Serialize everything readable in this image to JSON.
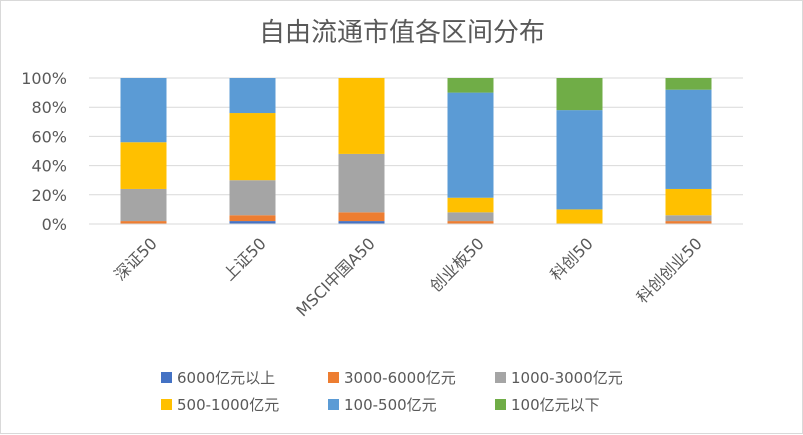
{
  "chart_data": {
    "type": "bar",
    "stacked": true,
    "title": "自由流通市值各区间分布",
    "categories": [
      "深证50",
      "上证50",
      "MSCI中国A50",
      "创业板50",
      "科创50",
      "科创创业50"
    ],
    "y_tick_labels": [
      "0%",
      "20%",
      "40%",
      "60%",
      "80%",
      "100%"
    ],
    "ylim": [
      0,
      100
    ],
    "grid": true,
    "legend_position": "bottom",
    "series": [
      {
        "name": "6000亿元以上",
        "color": "#4472C4",
        "values": [
          0,
          2,
          2,
          0,
          0,
          0
        ]
      },
      {
        "name": "3000-6000亿元",
        "color": "#ED7D31",
        "values": [
          2,
          4,
          6,
          2,
          0,
          2
        ]
      },
      {
        "name": "1000-3000亿元",
        "color": "#A5A5A5",
        "values": [
          22,
          24,
          40,
          6,
          0,
          4
        ]
      },
      {
        "name": "500-1000亿元",
        "color": "#FFC000",
        "values": [
          32,
          46,
          52,
          10,
          10,
          18
        ]
      },
      {
        "name": "100-500亿元",
        "color": "#5B9BD5",
        "values": [
          44,
          24,
          0,
          72,
          68,
          68
        ]
      },
      {
        "name": "100亿元以下",
        "color": "#70AD47",
        "values": [
          0,
          0,
          0,
          10,
          22,
          8
        ]
      }
    ]
  }
}
